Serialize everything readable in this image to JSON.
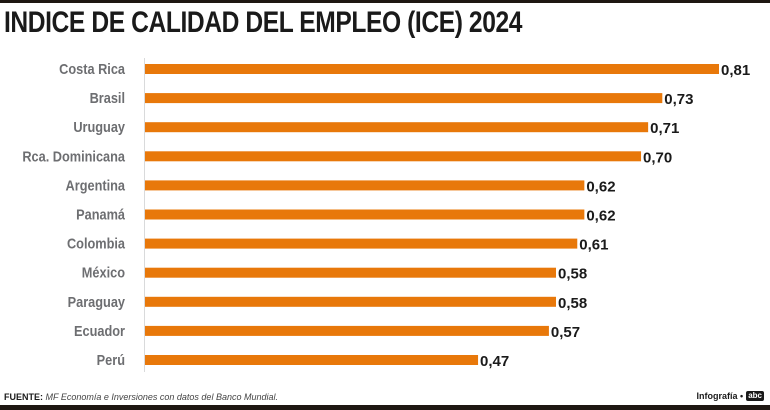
{
  "chart_data": {
    "type": "bar",
    "orientation": "horizontal",
    "title": "INDICE DE CALIDAD DEL EMPLEO (ICE) 2024",
    "categories": [
      "Costa Rica",
      "Brasil",
      "Uruguay",
      "Rca. Dominicana",
      "Argentina",
      "Panamá",
      "Colombia",
      "México",
      "Paraguay",
      "Ecuador",
      "Perú"
    ],
    "values": [
      0.81,
      0.73,
      0.71,
      0.7,
      0.62,
      0.62,
      0.61,
      0.58,
      0.58,
      0.57,
      0.47
    ],
    "value_labels": [
      "0,81",
      "0,73",
      "0,71",
      "0,70",
      "0,62",
      "0,62",
      "0,61",
      "0,58",
      "0,58",
      "0,57",
      "0,47"
    ],
    "xlabel": "",
    "ylabel": "",
    "xlim": [
      0,
      0.81
    ],
    "grid": false,
    "legend": "none",
    "bar_color": "#e8780a"
  },
  "footer": {
    "source_label": "FUENTE:",
    "source_text": "MF Economía e Inversiones con datos del Banco Mundial.",
    "credit": "Infografía •",
    "logo": "abc"
  }
}
